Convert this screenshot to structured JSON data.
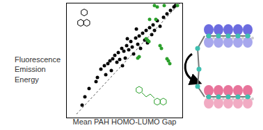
{
  "chart_data": {
    "type": "scatter",
    "xlabel": "Mean PAH HOMO-LUMO Gap",
    "ylabel": "Fluorescence Emission Energy",
    "xlim": [
      96,
      262
    ],
    "ylim": [
      0,
      165
    ],
    "xticks": [],
    "yticks": [],
    "tick_labels": false,
    "grid": false,
    "series": [
      {
        "color": "#000000",
        "marker": "circle",
        "x": [
          118,
          122,
          128,
          138,
          140,
          145,
          150,
          152,
          155,
          158,
          160,
          162,
          165,
          168,
          170,
          172,
          175,
          178,
          180,
          182,
          185,
          188,
          190,
          192,
          195,
          198,
          200,
          202,
          205,
          208,
          210,
          212,
          215,
          218,
          220,
          222,
          226,
          230,
          235,
          240,
          245,
          250,
          183,
          176,
          196,
          252
        ],
        "values": [
          18,
          30,
          42,
          52,
          58,
          70,
          75,
          62,
          78,
          82,
          68,
          85,
          90,
          80,
          94,
          84,
          100,
          96,
          86,
          104,
          98,
          110,
          102,
          92,
          115,
          106,
          118,
          100,
          122,
          112,
          126,
          108,
          130,
          120,
          134,
          126,
          140,
          132,
          145,
          150,
          155,
          160,
          114,
          75,
          128,
          162
        ]
      },
      {
        "color": "#2ca02c",
        "marker": "circle",
        "x": [
          222,
          226,
          224,
          210,
          212,
          214,
          200,
          198,
          240,
          242,
          244,
          230,
          232,
          215,
          236,
          255
        ],
        "values": [
          162,
          160,
          142,
          114,
          112,
          110,
          88,
          86,
          85,
          82,
          78,
          104,
          100,
          142,
          162,
          162
        ]
      },
      {
        "type": "line",
        "line_style": "dotted",
        "color": "#555555",
        "x": [
          110,
          258
        ],
        "values": [
          5,
          165
        ]
      }
    ]
  }
}
